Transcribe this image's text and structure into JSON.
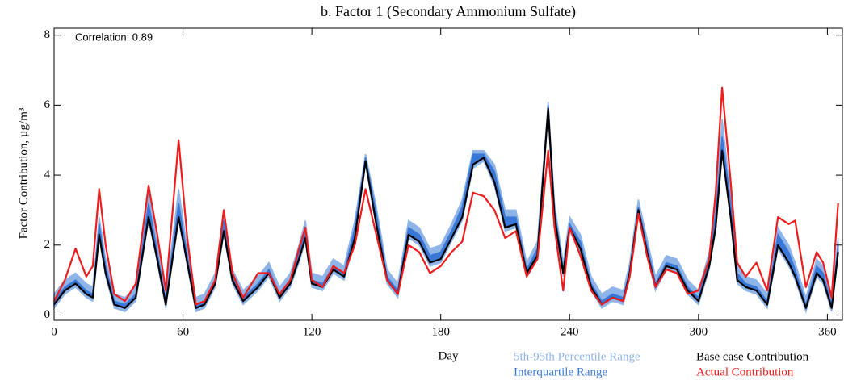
{
  "chart_data": {
    "type": "line",
    "title": "b.  Factor 1 (Secondary Ammonium Sulfate)",
    "annotation": "Correlation: 0.89",
    "x_label": "Day",
    "y_label": "Factor Contribution,  µg/m³",
    "xlim": [
      0,
      367
    ],
    "ylim": [
      -0.15,
      8.2
    ],
    "xticks": [
      0,
      60,
      120,
      180,
      240,
      300,
      360
    ],
    "yticks": [
      0,
      2,
      4,
      6,
      8
    ],
    "x": [
      0,
      5,
      10,
      15,
      18,
      21,
      24,
      28,
      33,
      38,
      44,
      48,
      52,
      58,
      62,
      66,
      70,
      75,
      79,
      83,
      88,
      95,
      100,
      105,
      110,
      114,
      117,
      120,
      125,
      130,
      135,
      140,
      145,
      150,
      155,
      160,
      165,
      170,
      175,
      180,
      185,
      190,
      195,
      200,
      205,
      210,
      215,
      220,
      225,
      230,
      233,
      237,
      240,
      245,
      250,
      255,
      260,
      265,
      268,
      272,
      276,
      280,
      285,
      290,
      295,
      300,
      305,
      308,
      311,
      315,
      318,
      322,
      327,
      332,
      337,
      342,
      345,
      350,
      355,
      358,
      362,
      365
    ],
    "series": [
      {
        "name": "5th-95th Percentile Range",
        "color": "#8fb4e8",
        "lower": [
          0.2,
          0.6,
          0.8,
          0.5,
          0.4,
          2.2,
          1.1,
          0.2,
          0.1,
          0.4,
          2.7,
          1.5,
          0.2,
          2.7,
          1.4,
          0.1,
          0.2,
          0.8,
          2.3,
          0.9,
          0.3,
          0.7,
          1.1,
          0.4,
          0.8,
          1.5,
          2.1,
          0.8,
          0.7,
          1.2,
          1.0,
          2.1,
          4.3,
          2.5,
          0.9,
          0.5,
          2.2,
          2.0,
          1.4,
          1.5,
          2.1,
          2.7,
          4.2,
          4.4,
          3.7,
          2.4,
          2.5,
          1.1,
          1.6,
          5.8,
          2.7,
          1.1,
          2.4,
          1.8,
          0.7,
          0.2,
          0.4,
          0.3,
          1.1,
          2.9,
          1.7,
          0.7,
          1.3,
          1.2,
          0.6,
          0.3,
          1.3,
          2.4,
          4.6,
          2.7,
          0.9,
          0.7,
          0.6,
          0.2,
          1.9,
          1.4,
          1.0,
          0.1,
          1.1,
          0.9,
          0.1,
          1.7
        ],
        "upper": [
          0.6,
          1.0,
          1.2,
          0.9,
          0.8,
          2.8,
          1.6,
          0.6,
          0.5,
          0.8,
          3.5,
          2.0,
          0.6,
          3.6,
          1.9,
          0.5,
          0.6,
          1.2,
          2.9,
          1.3,
          0.7,
          1.1,
          1.5,
          0.8,
          1.2,
          2.0,
          2.7,
          1.2,
          1.1,
          1.6,
          1.4,
          2.7,
          4.6,
          3.1,
          1.3,
          0.9,
          2.7,
          2.5,
          1.9,
          2.0,
          2.6,
          3.3,
          4.7,
          4.7,
          4.3,
          3.0,
          3.0,
          1.5,
          2.1,
          6.1,
          3.2,
          1.5,
          2.8,
          2.3,
          1.1,
          0.6,
          0.8,
          0.7,
          1.5,
          3.3,
          2.2,
          1.1,
          1.7,
          1.6,
          1.0,
          0.7,
          1.8,
          3.1,
          5.6,
          3.4,
          1.4,
          1.1,
          1.0,
          0.6,
          2.5,
          2.0,
          1.5,
          0.5,
          1.6,
          1.4,
          0.5,
          2.2
        ]
      },
      {
        "name": "Interquartile Range",
        "color": "#3a78d8",
        "lower": [
          0.3,
          0.7,
          0.9,
          0.6,
          0.5,
          2.3,
          1.2,
          0.3,
          0.2,
          0.5,
          2.8,
          1.6,
          0.3,
          2.8,
          1.5,
          0.2,
          0.3,
          0.9,
          2.4,
          1.0,
          0.4,
          0.8,
          1.2,
          0.5,
          0.9,
          1.6,
          2.2,
          0.9,
          0.8,
          1.3,
          1.1,
          2.2,
          4.4,
          2.6,
          1.0,
          0.6,
          2.3,
          2.1,
          1.5,
          1.6,
          2.2,
          2.8,
          4.3,
          4.5,
          3.8,
          2.5,
          2.6,
          1.2,
          1.7,
          5.9,
          2.8,
          1.2,
          2.5,
          1.9,
          0.8,
          0.3,
          0.5,
          0.4,
          1.2,
          3.0,
          1.8,
          0.8,
          1.4,
          1.3,
          0.7,
          0.4,
          1.4,
          2.5,
          4.7,
          2.8,
          1.0,
          0.8,
          0.7,
          0.3,
          2.0,
          1.5,
          1.1,
          0.2,
          1.2,
          1.0,
          0.2,
          1.8
        ],
        "upper": [
          0.4,
          0.8,
          1.0,
          0.7,
          0.6,
          2.6,
          1.4,
          0.4,
          0.3,
          0.6,
          3.2,
          1.8,
          0.4,
          3.2,
          1.7,
          0.3,
          0.4,
          1.0,
          2.7,
          1.1,
          0.5,
          0.9,
          1.3,
          0.6,
          1.0,
          1.8,
          2.5,
          1.0,
          0.9,
          1.4,
          1.2,
          2.5,
          4.5,
          2.9,
          1.1,
          0.7,
          2.5,
          2.3,
          1.7,
          1.8,
          2.4,
          3.1,
          4.6,
          4.6,
          4.1,
          2.8,
          2.8,
          1.3,
          1.9,
          6.0,
          3.0,
          1.3,
          2.6,
          2.1,
          0.9,
          0.4,
          0.6,
          0.5,
          1.3,
          3.1,
          2.0,
          0.9,
          1.5,
          1.4,
          0.8,
          0.5,
          1.6,
          2.9,
          5.1,
          3.2,
          1.2,
          0.9,
          0.8,
          0.4,
          2.3,
          1.8,
          1.3,
          0.3,
          1.4,
          1.2,
          0.3,
          2.0
        ]
      },
      {
        "name": "Base case Contribution",
        "color": "#000000",
        "values": [
          0.3,
          0.7,
          0.9,
          0.6,
          0.5,
          2.3,
          1.2,
          0.3,
          0.2,
          0.5,
          2.8,
          1.6,
          0.3,
          2.8,
          1.5,
          0.2,
          0.3,
          0.9,
          2.4,
          1.0,
          0.4,
          0.8,
          1.2,
          0.5,
          0.9,
          1.6,
          2.2,
          0.9,
          0.8,
          1.3,
          1.1,
          2.2,
          4.4,
          2.6,
          1.0,
          0.6,
          2.3,
          2.1,
          1.5,
          1.6,
          2.2,
          2.8,
          4.3,
          4.5,
          3.8,
          2.5,
          2.6,
          1.2,
          1.7,
          5.9,
          2.8,
          1.2,
          2.5,
          1.9,
          0.8,
          0.3,
          0.5,
          0.4,
          1.2,
          3.0,
          1.8,
          0.8,
          1.4,
          1.3,
          0.7,
          0.4,
          1.4,
          2.5,
          4.7,
          2.8,
          1.0,
          0.8,
          0.7,
          0.3,
          2.0,
          1.5,
          1.1,
          0.2,
          1.2,
          1.0,
          0.2,
          1.8
        ]
      },
      {
        "name": "Actual Contribution",
        "color": "#ee1c1c",
        "values": [
          0.4,
          1.0,
          1.9,
          1.1,
          1.4,
          3.6,
          2.0,
          0.6,
          0.4,
          0.9,
          3.7,
          2.3,
          0.7,
          5.0,
          2.2,
          0.3,
          0.4,
          1.0,
          3.0,
          1.2,
          0.5,
          1.2,
          1.2,
          0.6,
          1.0,
          1.9,
          2.5,
          1.0,
          0.8,
          1.4,
          1.2,
          2.0,
          3.6,
          2.3,
          1.0,
          0.6,
          2.0,
          1.8,
          1.2,
          1.4,
          1.8,
          2.1,
          3.5,
          3.4,
          3.0,
          2.2,
          2.4,
          1.1,
          1.6,
          4.7,
          2.5,
          0.7,
          2.5,
          1.7,
          0.7,
          0.3,
          0.5,
          0.4,
          1.1,
          2.9,
          1.7,
          0.8,
          1.3,
          1.2,
          0.6,
          0.7,
          1.6,
          3.5,
          6.5,
          3.8,
          1.5,
          1.1,
          1.5,
          0.7,
          2.8,
          2.6,
          2.7,
          0.8,
          1.8,
          1.5,
          0.5,
          3.2
        ]
      }
    ]
  }
}
